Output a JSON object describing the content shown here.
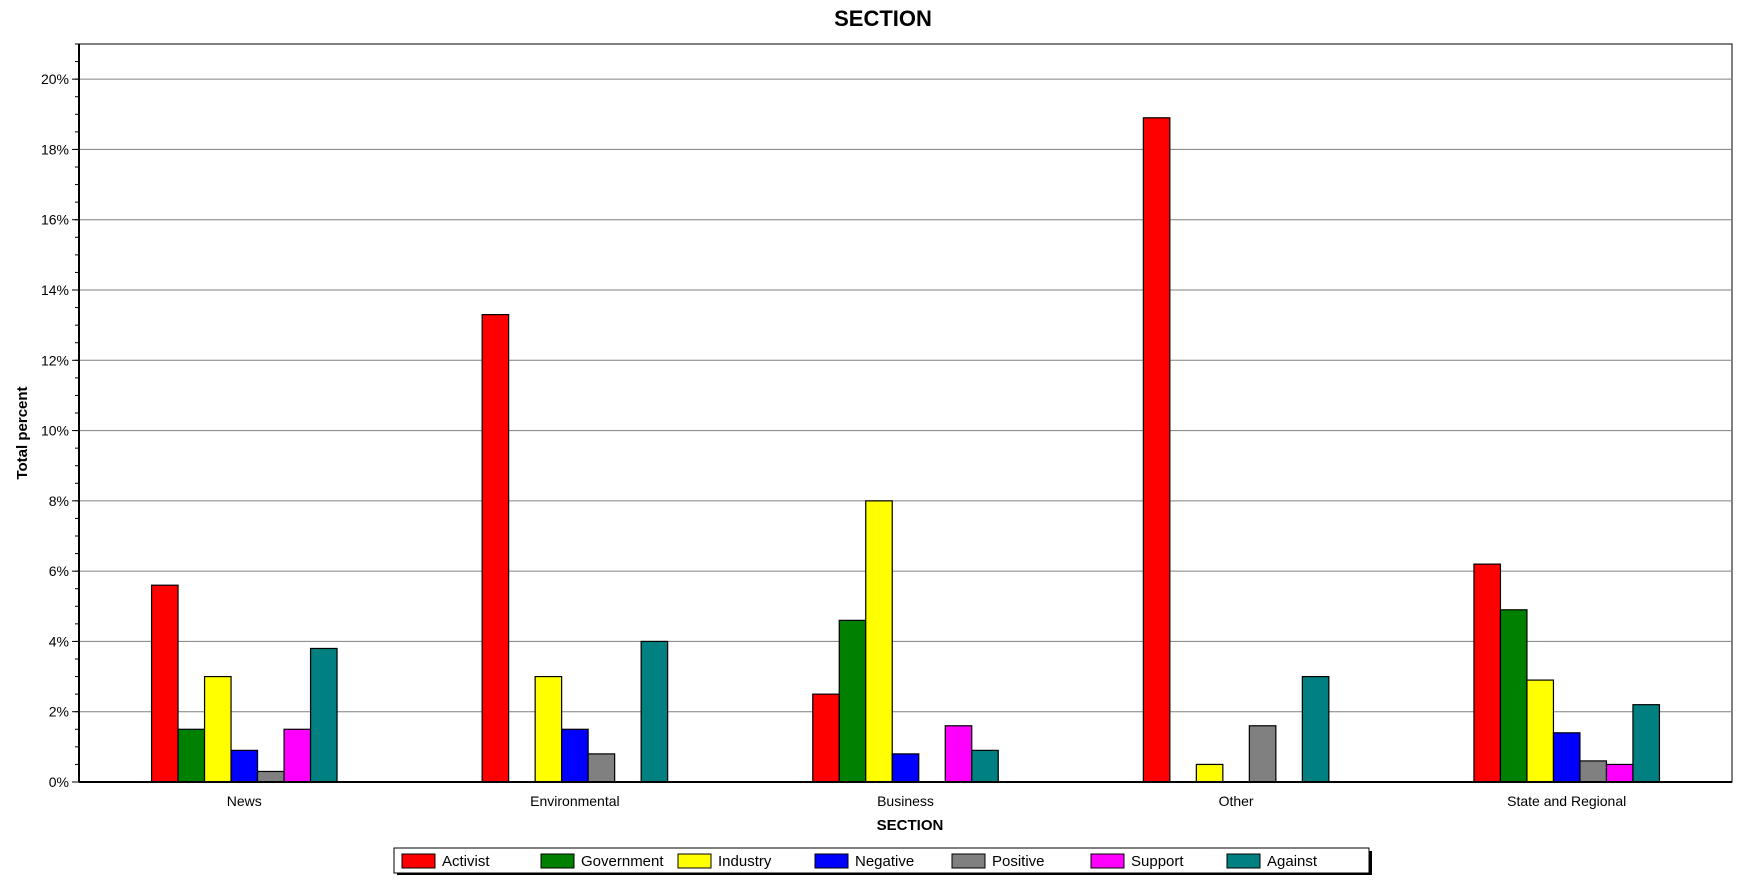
{
  "chart_data": {
    "type": "bar",
    "title": "SECTION",
    "xlabel": "SECTION",
    "ylabel": "Total percent",
    "categories": [
      "News",
      "Environmental",
      "Business",
      "Other",
      "State and Regional"
    ],
    "ylim": [
      0,
      21
    ],
    "y_ticks": [
      0,
      2,
      4,
      6,
      8,
      10,
      12,
      14,
      16,
      18,
      20
    ],
    "y_tick_labels": [
      "0%",
      "2%",
      "4%",
      "6%",
      "8%",
      "10%",
      "12%",
      "14%",
      "16%",
      "18%",
      "20%"
    ],
    "grid": true,
    "legend_position": "bottom",
    "series": [
      {
        "name": "Activist",
        "color": "#ff0000",
        "values": [
          5.6,
          13.3,
          2.5,
          18.9,
          6.2
        ]
      },
      {
        "name": "Government",
        "color": "#008000",
        "values": [
          1.5,
          0,
          4.6,
          0,
          4.9
        ]
      },
      {
        "name": "Industry",
        "color": "#ffff00",
        "values": [
          3.0,
          3.0,
          8.0,
          0.5,
          2.9
        ]
      },
      {
        "name": "Negative",
        "color": "#0000ff",
        "values": [
          0.9,
          1.5,
          0.8,
          0,
          1.4
        ]
      },
      {
        "name": "Positive",
        "color": "#808080",
        "values": [
          0.3,
          0.8,
          0,
          1.6,
          0.6
        ]
      },
      {
        "name": "Support",
        "color": "#ff00ff",
        "values": [
          1.5,
          0,
          1.6,
          0,
          0.5
        ]
      },
      {
        "name": "Against",
        "color": "#008080",
        "values": [
          3.8,
          4.0,
          0.9,
          3.0,
          2.2
        ]
      }
    ]
  }
}
